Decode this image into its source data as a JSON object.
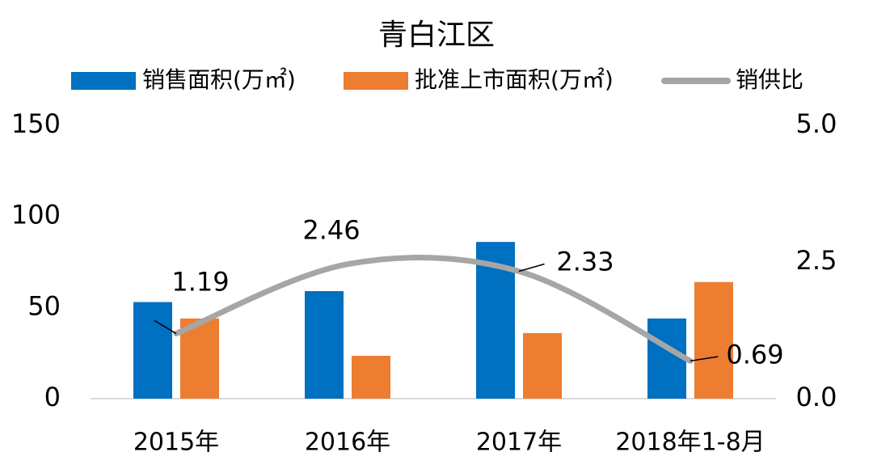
{
  "chart_data": {
    "type": "bar_line",
    "title": "青白江区",
    "categories": [
      "2015年",
      "2016年",
      "2017年",
      "2018年1-8月"
    ],
    "series": [
      {
        "name": "销售面积(万㎡)",
        "color": "#0070c0",
        "type": "bar",
        "values": [
          53,
          59,
          86,
          44
        ]
      },
      {
        "name": "批准上市面积(万㎡)",
        "color": "#ed7d31",
        "type": "bar",
        "values": [
          44,
          23.5,
          36,
          64
        ]
      },
      {
        "name": "销供比",
        "color": "#a6a6a6",
        "type": "line",
        "axis": "y2",
        "values": [
          1.19,
          2.46,
          2.33,
          0.69
        ]
      }
    ],
    "ylim": [
      0,
      150
    ],
    "yticks": [
      0,
      50,
      100,
      150
    ],
    "y2lim": [
      0,
      5
    ],
    "y2ticks": [
      {
        "value": 0,
        "label": "0.0"
      },
      {
        "value": 2.5,
        "label": "2.5"
      },
      {
        "value": 5,
        "label": "5.0"
      }
    ],
    "legend": "top"
  }
}
